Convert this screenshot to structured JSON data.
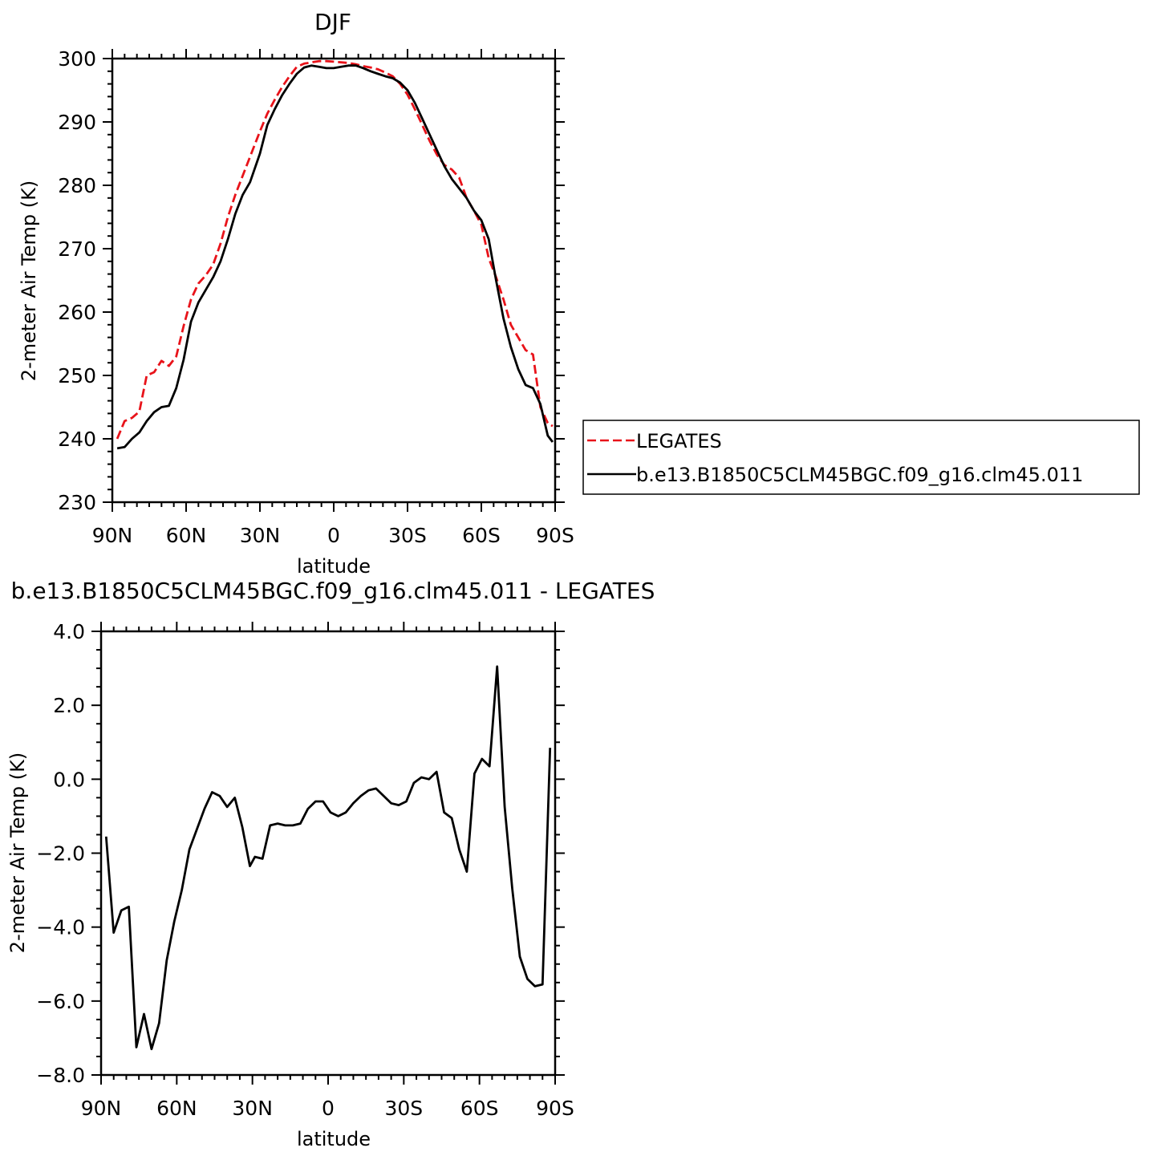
{
  "chart_data": [
    {
      "type": "line",
      "title": "DJF",
      "xlabel": "latitude",
      "ylabel": "2-meter Air Temp (K)",
      "xlim": [
        90,
        -90
      ],
      "ylim": [
        230,
        300
      ],
      "x_ticks": [
        {
          "value": 90,
          "label": "90N"
        },
        {
          "value": 60,
          "label": "60N"
        },
        {
          "value": 30,
          "label": "30N"
        },
        {
          "value": 0,
          "label": "0"
        },
        {
          "value": -30,
          "label": "30S"
        },
        {
          "value": -60,
          "label": "60S"
        },
        {
          "value": -90,
          "label": "90S"
        }
      ],
      "y_ticks": [
        {
          "value": 230,
          "label": "230"
        },
        {
          "value": 240,
          "label": "240"
        },
        {
          "value": 250,
          "label": "250"
        },
        {
          "value": 260,
          "label": "260"
        },
        {
          "value": 270,
          "label": "270"
        },
        {
          "value": 280,
          "label": "280"
        },
        {
          "value": 290,
          "label": "290"
        },
        {
          "value": 300,
          "label": "300"
        }
      ],
      "grid": false,
      "legend_position": "right",
      "series": [
        {
          "name": "LEGATES",
          "color": "#e8131a",
          "dash": "dashed",
          "x": [
            88,
            85,
            82,
            79,
            76,
            73,
            70,
            67,
            64,
            61,
            58,
            55,
            52,
            49,
            46,
            43,
            40,
            37,
            34,
            30,
            27,
            24,
            21,
            18,
            15,
            12,
            9,
            6,
            3,
            0,
            -3,
            -6,
            -9,
            -12,
            -15,
            -18,
            -21,
            -24,
            -27,
            -30,
            -33,
            -36,
            -39,
            -42,
            -45,
            -48,
            -51,
            -54,
            -57,
            -60,
            -63,
            -66,
            -69,
            -72,
            -75,
            -78,
            -81,
            -84,
            -87,
            -89
          ],
          "y": [
            240.0,
            242.8,
            243.3,
            244.3,
            250.0,
            250.5,
            252.3,
            251.5,
            253.0,
            257.8,
            262.0,
            264.5,
            265.8,
            267.5,
            270.8,
            275.0,
            278.5,
            281.5,
            284.5,
            288.5,
            291.3,
            293.5,
            295.5,
            297.2,
            298.7,
            299.2,
            299.4,
            299.6,
            299.6,
            299.5,
            299.4,
            299.3,
            299.1,
            298.8,
            298.6,
            298.3,
            297.8,
            297.2,
            296.0,
            294.3,
            292.0,
            289.5,
            287.0,
            284.8,
            283.2,
            282.5,
            281.2,
            278.0,
            276.0,
            273.8,
            268.5,
            265.5,
            262.0,
            258.0,
            256.0,
            254.0,
            253.3,
            245.0,
            242.5,
            242.0
          ]
        },
        {
          "name": "b.e13.B1850C5CLM45BGC.f09_g16.clm45.011",
          "color": "#000000",
          "dash": "solid",
          "x": [
            88,
            85,
            82,
            79,
            76,
            73,
            70,
            67,
            64,
            61,
            58,
            55,
            52,
            49,
            46,
            43,
            40,
            37,
            34,
            30,
            27,
            24,
            21,
            18,
            15,
            12,
            9,
            6,
            3,
            0,
            -3,
            -6,
            -9,
            -12,
            -15,
            -18,
            -21,
            -24,
            -27,
            -30,
            -33,
            -36,
            -39,
            -42,
            -45,
            -48,
            -51,
            -54,
            -57,
            -60,
            -63,
            -66,
            -69,
            -72,
            -75,
            -78,
            -81,
            -84,
            -87,
            -89
          ],
          "y": [
            238.5,
            238.7,
            240.0,
            241.0,
            242.8,
            244.2,
            245.0,
            245.2,
            248.0,
            252.5,
            258.5,
            261.5,
            263.5,
            265.5,
            268.0,
            271.5,
            275.5,
            278.5,
            280.5,
            285.0,
            289.5,
            292.0,
            294.2,
            296.0,
            297.6,
            298.6,
            298.9,
            298.7,
            298.5,
            298.5,
            298.7,
            298.9,
            298.9,
            298.5,
            298.0,
            297.6,
            297.2,
            296.9,
            296.2,
            295.0,
            293.0,
            290.5,
            288.0,
            285.5,
            283.0,
            281.0,
            279.5,
            278.0,
            276.0,
            274.5,
            271.5,
            265.0,
            259.0,
            254.5,
            251.0,
            248.5,
            248.0,
            245.5,
            240.5,
            239.5
          ]
        }
      ]
    },
    {
      "type": "line",
      "title": "b.e13.B1850C5CLM45BGC.f09_g16.clm45.011  -  LEGATES",
      "xlabel": "latitude",
      "ylabel": "2-meter Air Temp (K)",
      "xlim": [
        90,
        -90
      ],
      "ylim": [
        -8,
        4
      ],
      "x_ticks": [
        {
          "value": 90,
          "label": "90N"
        },
        {
          "value": 60,
          "label": "60N"
        },
        {
          "value": 30,
          "label": "30N"
        },
        {
          "value": 0,
          "label": "0"
        },
        {
          "value": -30,
          "label": "30S"
        },
        {
          "value": -60,
          "label": "60S"
        },
        {
          "value": -90,
          "label": "90S"
        }
      ],
      "y_ticks": [
        {
          "value": -8,
          "label": "−8.0"
        },
        {
          "value": -6,
          "label": "−6.0"
        },
        {
          "value": -4,
          "label": "−4.0"
        },
        {
          "value": -2,
          "label": "−2.0"
        },
        {
          "value": 0,
          "label": "0.0"
        },
        {
          "value": 2,
          "label": "2.0"
        },
        {
          "value": 4,
          "label": "4.0"
        }
      ],
      "grid": false,
      "series": [
        {
          "color": "#000000",
          "dash": "solid",
          "x": [
            88,
            85,
            82,
            79,
            76,
            73,
            70,
            67,
            64,
            61,
            58,
            55,
            52,
            49,
            46,
            43,
            40,
            37,
            34,
            31,
            29,
            26,
            23,
            20,
            17,
            14,
            11,
            8,
            5,
            2,
            -1,
            -4,
            -7,
            -10,
            -13,
            -16,
            -19,
            -22,
            -25,
            -28,
            -31,
            -34,
            -37,
            -40,
            -43,
            -46,
            -49,
            -52,
            -55,
            -58,
            -61,
            -64,
            -67,
            -70,
            -73,
            -76,
            -79,
            -82,
            -85,
            -88
          ],
          "y": [
            -1.55,
            -4.15,
            -3.55,
            -3.45,
            -7.25,
            -6.35,
            -7.3,
            -6.6,
            -4.9,
            -3.85,
            -3.0,
            -1.9,
            -1.35,
            -0.8,
            -0.35,
            -0.45,
            -0.75,
            -0.5,
            -1.3,
            -2.35,
            -2.1,
            -2.15,
            -1.25,
            -1.2,
            -1.25,
            -1.25,
            -1.2,
            -0.8,
            -0.6,
            -0.6,
            -0.9,
            -1.0,
            -0.9,
            -0.65,
            -0.45,
            -0.3,
            -0.25,
            -0.45,
            -0.65,
            -0.7,
            -0.6,
            -0.1,
            0.05,
            0.0,
            0.2,
            -0.9,
            -1.05,
            -1.9,
            -2.5,
            0.15,
            0.55,
            0.35,
            3.05,
            -0.75,
            -2.95,
            -4.8,
            -5.4,
            -5.6,
            -5.55,
            0.85
          ]
        }
      ]
    }
  ]
}
